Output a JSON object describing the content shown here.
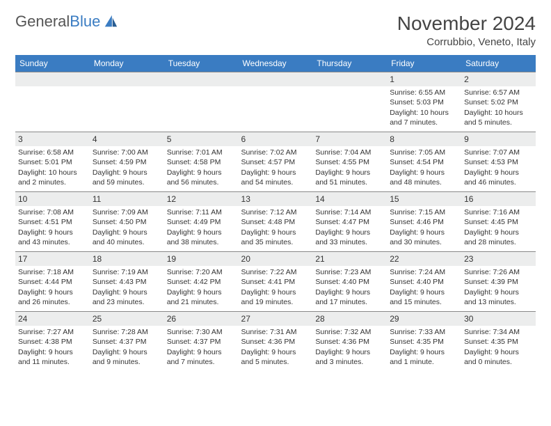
{
  "logo": {
    "word1": "General",
    "word2": "Blue"
  },
  "title": "November 2024",
  "location": "Corrubbio, Veneto, Italy",
  "weekdays": [
    "Sunday",
    "Monday",
    "Tuesday",
    "Wednesday",
    "Thursday",
    "Friday",
    "Saturday"
  ],
  "colors": {
    "header_bg": "#3a7cc2",
    "header_text": "#ffffff",
    "daynum_bg": "#eceded",
    "border": "#888888",
    "title": "#444444",
    "text": "#333333"
  },
  "typography": {
    "title_fontsize": 28,
    "location_fontsize": 15,
    "weekday_fontsize": 12,
    "cell_fontsize": 10.5,
    "daynum_fontsize": 12
  },
  "layout": {
    "cols": 7,
    "rows": 5,
    "first_weekday_index": 5
  },
  "days": [
    {
      "n": 1,
      "sunrise": "6:55 AM",
      "sunset": "5:03 PM",
      "daylight": "10 hours and 7 minutes."
    },
    {
      "n": 2,
      "sunrise": "6:57 AM",
      "sunset": "5:02 PM",
      "daylight": "10 hours and 5 minutes."
    },
    {
      "n": 3,
      "sunrise": "6:58 AM",
      "sunset": "5:01 PM",
      "daylight": "10 hours and 2 minutes."
    },
    {
      "n": 4,
      "sunrise": "7:00 AM",
      "sunset": "4:59 PM",
      "daylight": "9 hours and 59 minutes."
    },
    {
      "n": 5,
      "sunrise": "7:01 AM",
      "sunset": "4:58 PM",
      "daylight": "9 hours and 56 minutes."
    },
    {
      "n": 6,
      "sunrise": "7:02 AM",
      "sunset": "4:57 PM",
      "daylight": "9 hours and 54 minutes."
    },
    {
      "n": 7,
      "sunrise": "7:04 AM",
      "sunset": "4:55 PM",
      "daylight": "9 hours and 51 minutes."
    },
    {
      "n": 8,
      "sunrise": "7:05 AM",
      "sunset": "4:54 PM",
      "daylight": "9 hours and 48 minutes."
    },
    {
      "n": 9,
      "sunrise": "7:07 AM",
      "sunset": "4:53 PM",
      "daylight": "9 hours and 46 minutes."
    },
    {
      "n": 10,
      "sunrise": "7:08 AM",
      "sunset": "4:51 PM",
      "daylight": "9 hours and 43 minutes."
    },
    {
      "n": 11,
      "sunrise": "7:09 AM",
      "sunset": "4:50 PM",
      "daylight": "9 hours and 40 minutes."
    },
    {
      "n": 12,
      "sunrise": "7:11 AM",
      "sunset": "4:49 PM",
      "daylight": "9 hours and 38 minutes."
    },
    {
      "n": 13,
      "sunrise": "7:12 AM",
      "sunset": "4:48 PM",
      "daylight": "9 hours and 35 minutes."
    },
    {
      "n": 14,
      "sunrise": "7:14 AM",
      "sunset": "4:47 PM",
      "daylight": "9 hours and 33 minutes."
    },
    {
      "n": 15,
      "sunrise": "7:15 AM",
      "sunset": "4:46 PM",
      "daylight": "9 hours and 30 minutes."
    },
    {
      "n": 16,
      "sunrise": "7:16 AM",
      "sunset": "4:45 PM",
      "daylight": "9 hours and 28 minutes."
    },
    {
      "n": 17,
      "sunrise": "7:18 AM",
      "sunset": "4:44 PM",
      "daylight": "9 hours and 26 minutes."
    },
    {
      "n": 18,
      "sunrise": "7:19 AM",
      "sunset": "4:43 PM",
      "daylight": "9 hours and 23 minutes."
    },
    {
      "n": 19,
      "sunrise": "7:20 AM",
      "sunset": "4:42 PM",
      "daylight": "9 hours and 21 minutes."
    },
    {
      "n": 20,
      "sunrise": "7:22 AM",
      "sunset": "4:41 PM",
      "daylight": "9 hours and 19 minutes."
    },
    {
      "n": 21,
      "sunrise": "7:23 AM",
      "sunset": "4:40 PM",
      "daylight": "9 hours and 17 minutes."
    },
    {
      "n": 22,
      "sunrise": "7:24 AM",
      "sunset": "4:40 PM",
      "daylight": "9 hours and 15 minutes."
    },
    {
      "n": 23,
      "sunrise": "7:26 AM",
      "sunset": "4:39 PM",
      "daylight": "9 hours and 13 minutes."
    },
    {
      "n": 24,
      "sunrise": "7:27 AM",
      "sunset": "4:38 PM",
      "daylight": "9 hours and 11 minutes."
    },
    {
      "n": 25,
      "sunrise": "7:28 AM",
      "sunset": "4:37 PM",
      "daylight": "9 hours and 9 minutes."
    },
    {
      "n": 26,
      "sunrise": "7:30 AM",
      "sunset": "4:37 PM",
      "daylight": "9 hours and 7 minutes."
    },
    {
      "n": 27,
      "sunrise": "7:31 AM",
      "sunset": "4:36 PM",
      "daylight": "9 hours and 5 minutes."
    },
    {
      "n": 28,
      "sunrise": "7:32 AM",
      "sunset": "4:36 PM",
      "daylight": "9 hours and 3 minutes."
    },
    {
      "n": 29,
      "sunrise": "7:33 AM",
      "sunset": "4:35 PM",
      "daylight": "9 hours and 1 minute."
    },
    {
      "n": 30,
      "sunrise": "7:34 AM",
      "sunset": "4:35 PM",
      "daylight": "9 hours and 0 minutes."
    }
  ],
  "labels": {
    "sunrise": "Sunrise:",
    "sunset": "Sunset:",
    "daylight": "Daylight:"
  }
}
